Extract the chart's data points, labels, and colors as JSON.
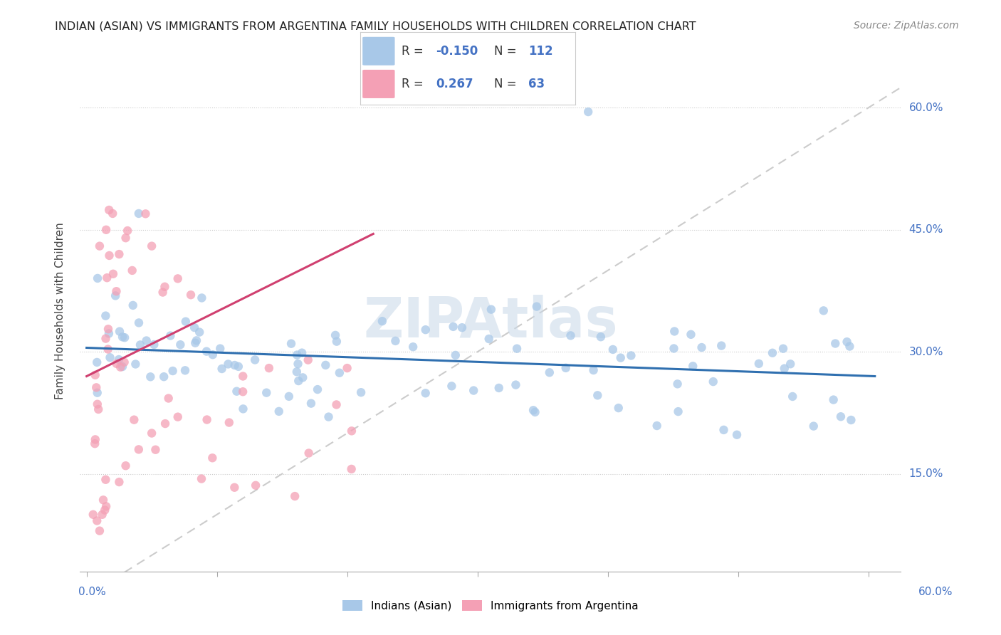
{
  "title": "INDIAN (ASIAN) VS IMMIGRANTS FROM ARGENTINA FAMILY HOUSEHOLDS WITH CHILDREN CORRELATION CHART",
  "source": "Source: ZipAtlas.com",
  "ylabel": "Family Households with Children",
  "xlim": [
    -0.005,
    0.625
  ],
  "ylim": [
    0.03,
    0.67
  ],
  "ytick_vals": [
    0.15,
    0.3,
    0.45,
    0.6
  ],
  "ytick_labels": [
    "15.0%",
    "30.0%",
    "45.0%",
    "60.0%"
  ],
  "xtick_vals": [
    0.0,
    0.1,
    0.2,
    0.3,
    0.4,
    0.5,
    0.6
  ],
  "legend_R1": "-0.150",
  "legend_N1": "112",
  "legend_R2": "0.267",
  "legend_N2": "63",
  "color_blue": "#a8c8e8",
  "color_pink": "#f4a0b5",
  "color_trend_blue": "#3070b0",
  "color_trend_pink": "#d04070",
  "color_diag": "#cccccc",
  "watermark": "ZIPAtlas",
  "blue_trend_x0": 0.0,
  "blue_trend_y0": 0.305,
  "blue_trend_x1": 0.605,
  "blue_trend_y1": 0.27,
  "pink_trend_x0": 0.0,
  "pink_trend_y0": 0.27,
  "pink_trend_x1": 0.22,
  "pink_trend_y1": 0.445
}
